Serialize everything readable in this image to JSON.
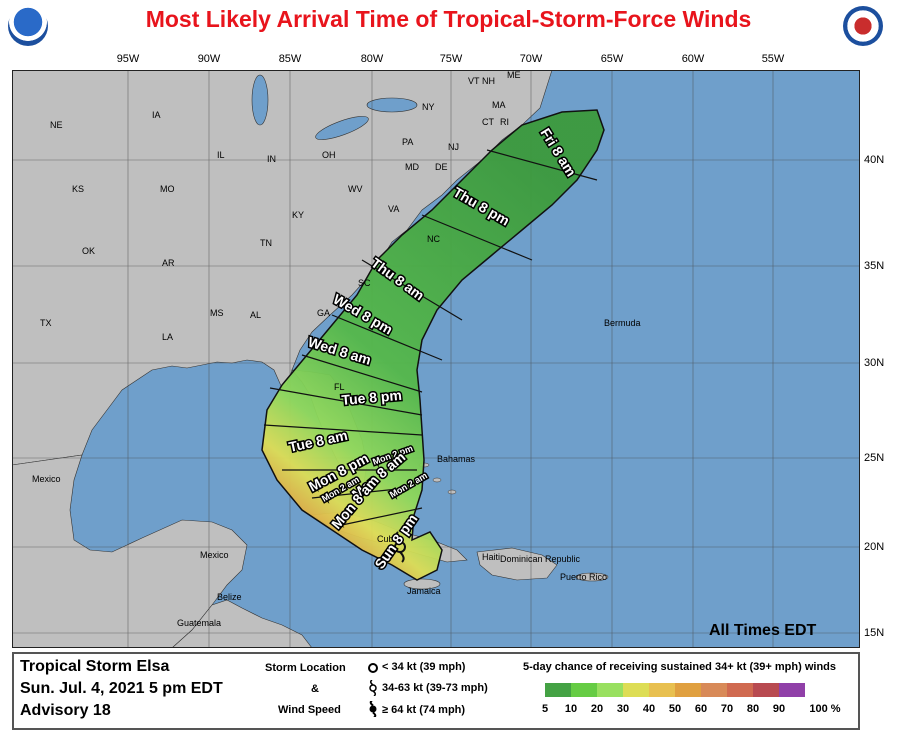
{
  "title": "Most Likely Arrival Time of Tropical-Storm-Force Winds",
  "lon_labels": [
    "95W",
    "90W",
    "85W",
    "80W",
    "75W",
    "70W",
    "65W",
    "60W",
    "55W"
  ],
  "lat_labels": [
    "40N",
    "35N",
    "30N",
    "25N",
    "20N",
    "15N"
  ],
  "states": [
    "NE",
    "IA",
    "IL",
    "IN",
    "OH",
    "PA",
    "NY",
    "VT",
    "NH",
    "ME",
    "MA",
    "CT",
    "RI",
    "NJ",
    "MD",
    "DE",
    "KS",
    "MO",
    "KY",
    "WV",
    "VA",
    "NC",
    "OK",
    "AR",
    "TN",
    "SC",
    "GA",
    "AL",
    "MS",
    "LA",
    "TX",
    "FL"
  ],
  "places": [
    "Mexico",
    "Mexico",
    "Belize",
    "Guatemala",
    "Bahamas",
    "Bermuda",
    "Cuba",
    "Jamaica",
    "Haiti",
    "Dominican Republic",
    "Puerto Rico"
  ],
  "arrival_labels": [
    "Fri 8 am",
    "Thu 8 pm",
    "Thu 8 am",
    "Wed 8 pm",
    "Wed 8 am",
    "Tue 8 pm",
    "Tue 8 am",
    "Mon 8 pm",
    "Mon 2 pm",
    "Mon 8 am",
    "Mon 2 am",
    "Mon 8 am",
    "Mon 2 am",
    "Sun 8 pm"
  ],
  "all_times": "All Times EDT",
  "footer": {
    "storm_name": "Tropical Storm Elsa",
    "date": "Sun. Jul. 4, 2021  5 pm EDT",
    "advisory": "Advisory 18",
    "legend_title_1": "Storm Location",
    "legend_amp": "&",
    "legend_title_2": "Wind Speed",
    "sym_low": "< 34 kt (39 mph)",
    "sym_mid": "34-63 kt (39-73 mph)",
    "sym_high": "≥ 64 kt (74 mph)",
    "prob_title": "5-day chance of receiving sustained 34+ kt (39+ mph) winds",
    "prob_labels": [
      "5",
      "10",
      "20",
      "30",
      "40",
      "50",
      "60",
      "70",
      "80",
      "90",
      "100 %"
    ]
  },
  "colors": {
    "ocean": "#6f9fcb",
    "land": "#bfbfbf",
    "title": "#e8141c",
    "scale": [
      "#44a244",
      "#66cc44",
      "#99e060",
      "#dddd55",
      "#e8c050",
      "#e0a040",
      "#d88a58",
      "#d06a50",
      "#b84a50",
      "#a04080",
      "#9040a8"
    ]
  }
}
